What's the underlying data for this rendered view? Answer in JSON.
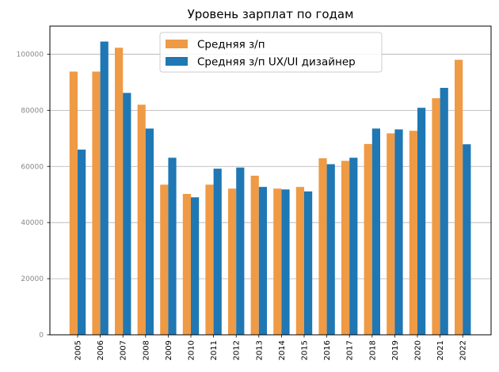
{
  "chart_data": {
    "type": "bar",
    "title": "Уровень зарплат по годам",
    "xlabel": "",
    "ylabel": "",
    "categories": [
      "2005",
      "2006",
      "2007",
      "2008",
      "2009",
      "2010",
      "2011",
      "2012",
      "2013",
      "2014",
      "2015",
      "2016",
      "2017",
      "2018",
      "2019",
      "2020",
      "2021",
      "2022"
    ],
    "series": [
      {
        "name": "Средняя з/п",
        "color": "#ef9a45",
        "values": [
          93800,
          93800,
          102300,
          82000,
          53500,
          50200,
          53500,
          52100,
          56700,
          52100,
          52700,
          62900,
          62000,
          68000,
          71800,
          72700,
          84300,
          98000
        ]
      },
      {
        "name": "Средняя з/п UX/UI дизайнер",
        "color": "#1f77b4",
        "values": [
          66000,
          104500,
          86200,
          73500,
          63100,
          49000,
          59200,
          59600,
          52700,
          51800,
          51100,
          60800,
          63100,
          73500,
          73200,
          80900,
          88000,
          67900
        ]
      }
    ],
    "ylim": [
      0,
      110000
    ],
    "yticks": [
      0,
      20000,
      40000,
      60000,
      80000,
      100000
    ],
    "ytick_labels": [
      "0",
      "20000",
      "40000",
      "60000",
      "80000",
      "100000"
    ],
    "grid": "horizontal",
    "legend_position": "top-center"
  }
}
